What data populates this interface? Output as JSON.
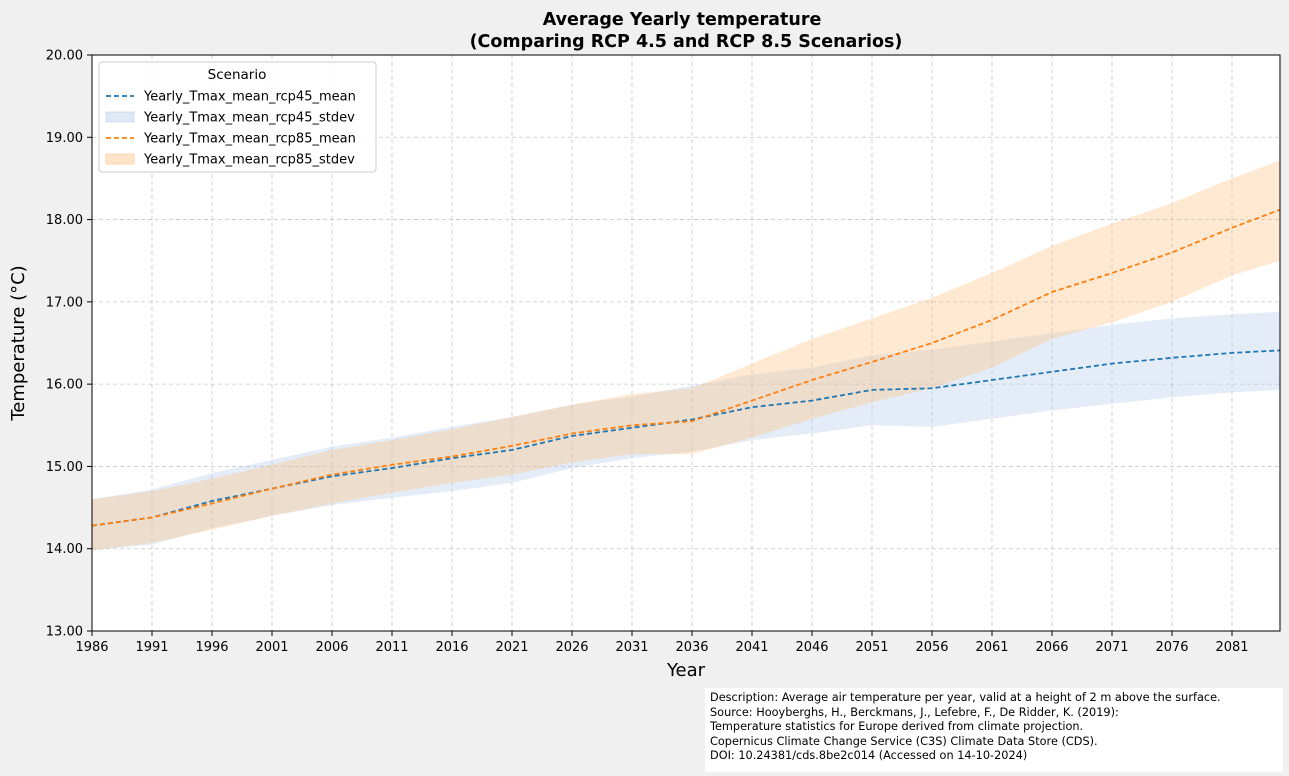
{
  "chart_data": {
    "type": "line",
    "title": "Average Yearly temperature",
    "subtitle": "(Comparing RCP 4.5 and RCP 8.5 Scenarios)",
    "xlabel": "Year",
    "ylabel": "Temperature (°C)",
    "xlim": [
      1986,
      2085
    ],
    "ylim": [
      13.0,
      20.0
    ],
    "xticks": [
      "1986",
      "1991",
      "1996",
      "2001",
      "2006",
      "2011",
      "2016",
      "2021",
      "2026",
      "2031",
      "2036",
      "2041",
      "2046",
      "2051",
      "2056",
      "2061",
      "2066",
      "2071",
      "2076",
      "2081"
    ],
    "yticks": [
      "13.00",
      "14.00",
      "15.00",
      "16.00",
      "17.00",
      "18.00",
      "19.00",
      "20.00"
    ],
    "grid": true,
    "legend": {
      "title": "Scenario",
      "position": "top-left",
      "entries": [
        {
          "label": "Yearly_Tmax_mean_rcp45_mean",
          "kind": "line",
          "color": "#1f77b4"
        },
        {
          "label": "Yearly_Tmax_mean_rcp45_stdev",
          "kind": "band",
          "color": "#aec7e8"
        },
        {
          "label": "Yearly_Tmax_mean_rcp85_mean",
          "kind": "line",
          "color": "#ff7f0e"
        },
        {
          "label": "Yearly_Tmax_mean_rcp85_stdev",
          "kind": "band",
          "color": "#ffbb78"
        }
      ]
    },
    "x": [
      1986,
      1991,
      1996,
      2001,
      2006,
      2011,
      2016,
      2021,
      2026,
      2031,
      2036,
      2041,
      2046,
      2051,
      2056,
      2061,
      2066,
      2071,
      2076,
      2081,
      2085
    ],
    "series": [
      {
        "name": "Yearly_Tmax_mean_rcp45_mean",
        "color": "#1f77b4",
        "style": "dashed",
        "values": [
          14.28,
          14.38,
          14.58,
          14.73,
          14.88,
          14.98,
          15.1,
          15.2,
          15.37,
          15.47,
          15.57,
          15.72,
          15.8,
          15.93,
          15.95,
          16.05,
          16.15,
          16.25,
          16.32,
          16.38,
          16.41
        ],
        "band_name": "Yearly_Tmax_mean_rcp45_stdev",
        "band_color": "#aec7e8",
        "band_upper": [
          14.6,
          14.72,
          14.92,
          15.08,
          15.24,
          15.35,
          15.48,
          15.6,
          15.75,
          15.85,
          15.98,
          16.12,
          16.2,
          16.35,
          16.42,
          16.52,
          16.62,
          16.72,
          16.8,
          16.85,
          16.88
        ],
        "band_lower": [
          13.98,
          14.05,
          14.25,
          14.4,
          14.53,
          14.62,
          14.7,
          14.8,
          14.98,
          15.1,
          15.18,
          15.32,
          15.4,
          15.5,
          15.48,
          15.58,
          15.68,
          15.76,
          15.84,
          15.9,
          15.93
        ]
      },
      {
        "name": "Yearly_Tmax_mean_rcp85_mean",
        "color": "#ff7f0e",
        "style": "dashed",
        "values": [
          14.28,
          14.38,
          14.55,
          14.73,
          14.9,
          15.02,
          15.12,
          15.25,
          15.4,
          15.5,
          15.55,
          15.8,
          16.05,
          16.27,
          16.5,
          16.78,
          17.12,
          17.35,
          17.6,
          17.9,
          18.12
        ],
        "band_name": "Yearly_Tmax_mean_rcp85_stdev",
        "band_color": "#ffbb78",
        "band_upper": [
          14.6,
          14.7,
          14.85,
          15.02,
          15.2,
          15.32,
          15.45,
          15.6,
          15.75,
          15.88,
          15.95,
          16.25,
          16.55,
          16.8,
          17.05,
          17.35,
          17.68,
          17.95,
          18.2,
          18.5,
          18.72
        ],
        "band_lower": [
          13.98,
          14.07,
          14.23,
          14.4,
          14.55,
          14.68,
          14.8,
          14.9,
          15.05,
          15.15,
          15.15,
          15.35,
          15.58,
          15.78,
          15.95,
          16.2,
          16.55,
          16.75,
          17.0,
          17.32,
          17.5
        ]
      }
    ]
  },
  "description": {
    "lines": [
      "Description: Average air temperature per year, valid at a height of 2 m above the surface.",
      "Source: Hooyberghs, H., Berckmans, J., Lefebre, F., De Ridder, K. (2019):",
      "Temperature statistics for Europe derived from climate projection.",
      "Copernicus Climate Change Service (C3S) Climate Data Store (CDS).",
      "DOI: 10.24381/cds.8be2c014 (Accessed on 14-10-2024)"
    ]
  }
}
